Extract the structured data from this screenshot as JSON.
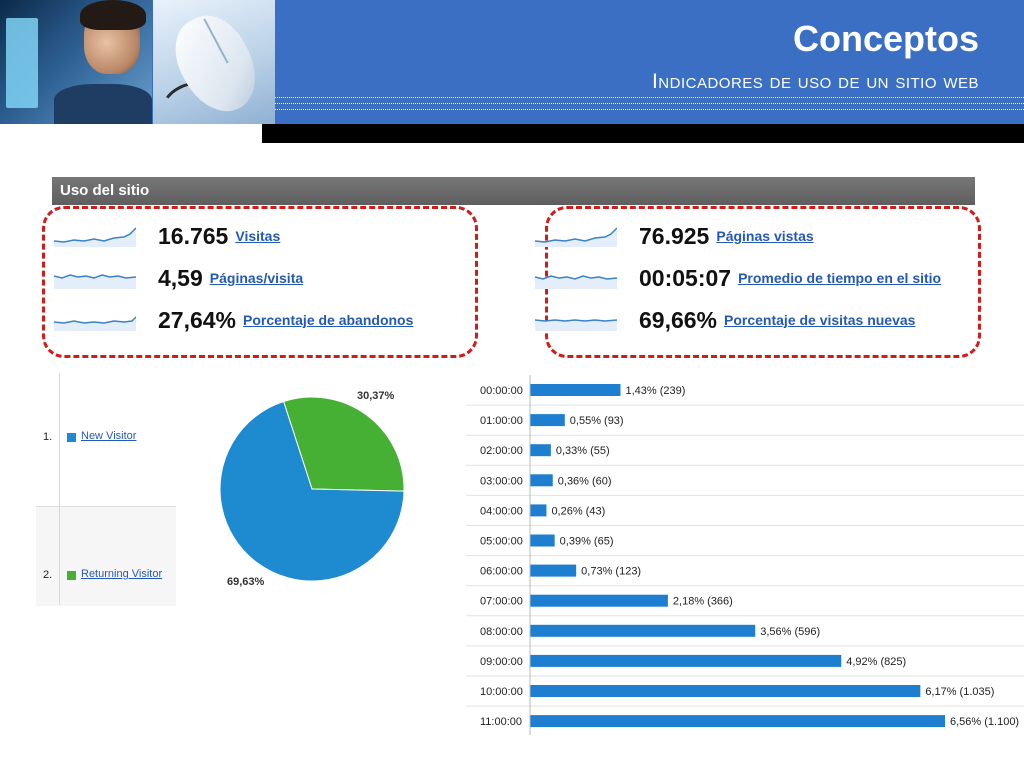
{
  "header": {
    "title": "Conceptos",
    "subtitle": "Indicadores de uso de un sitio web",
    "accent_color": "#3a6fc4"
  },
  "usage": {
    "heading": "Uso del sitio",
    "left_metrics": [
      {
        "value": "16.765",
        "label": "Visitas"
      },
      {
        "value": "4,59",
        "label": "Páginas/visita"
      },
      {
        "value": "27,64%",
        "label": "Porcentaje de abandonos"
      }
    ],
    "right_metrics": [
      {
        "value": "76.925",
        "label": "Páginas vistas"
      },
      {
        "value": "00:05:07",
        "label": "Promedio de tiempo en el sitio"
      },
      {
        "value": "69,66%",
        "label": "Porcentaje de visitas nuevas"
      }
    ]
  },
  "visitors": {
    "rows": [
      {
        "num": "1.",
        "label": "New Visitor",
        "color": "#1e8ad0"
      },
      {
        "num": "2.",
        "label": "Returning Visitor",
        "color": "#46b035"
      }
    ]
  },
  "chart_data": [
    {
      "type": "pie",
      "labels": [
        "New Visitor",
        "Returning Visitor"
      ],
      "values": [
        69.63,
        30.37
      ],
      "value_labels": [
        "69,63%",
        "30,37%"
      ],
      "colors": [
        "#1e8ad0",
        "#46b035"
      ]
    },
    {
      "type": "bar",
      "orientation": "horizontal",
      "categories": [
        "00:00:00",
        "01:00:00",
        "02:00:00",
        "03:00:00",
        "04:00:00",
        "05:00:00",
        "06:00:00",
        "07:00:00",
        "08:00:00",
        "09:00:00",
        "10:00:00",
        "11:00:00"
      ],
      "values": [
        1.43,
        0.55,
        0.33,
        0.36,
        0.26,
        0.39,
        0.73,
        2.18,
        3.56,
        4.92,
        6.17,
        6.56
      ],
      "counts": [
        239,
        93,
        55,
        60,
        43,
        65,
        123,
        366,
        596,
        825,
        1035,
        1100
      ],
      "data_labels": [
        "1,43% (239)",
        "0,55% (93)",
        "0,33% (55)",
        "0,36% (60)",
        "0,26% (43)",
        "0,39% (65)",
        "0,73% (123)",
        "2,18% (366)",
        "3,56% (596)",
        "4,92% (825)",
        "6,17% (1.035)",
        "6,56% (1.100)"
      ],
      "color": "#1e7fd0",
      "grid": true
    }
  ]
}
